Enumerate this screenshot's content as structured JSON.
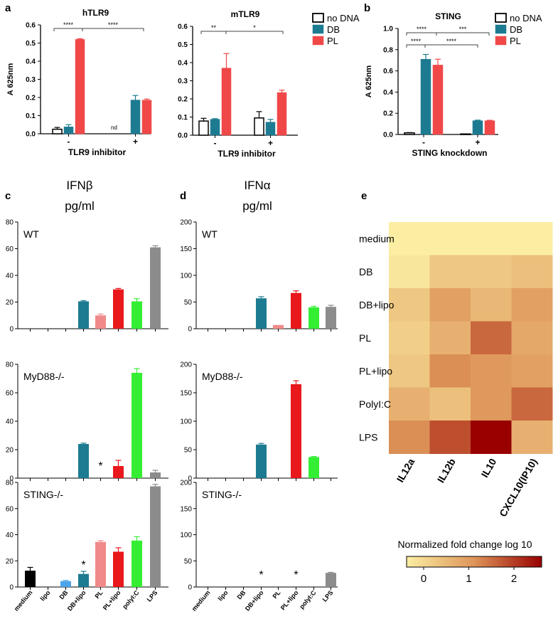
{
  "colors": {
    "none": "#ffffff",
    "db": "#1d7b91",
    "pl": "#f04848",
    "medium": "#000000",
    "lipo": "#4da3e8",
    "dbLipo": "#1d7b91",
    "plLight": "#f08a8a",
    "plLipo": "#e8181c",
    "polyIC": "#33ee33",
    "lps": "#8c8c8c",
    "heatLow": "#fbeea3",
    "heatMid": "#de9559",
    "heatHigh": "#990000"
  },
  "letters": {
    "a": "a",
    "b": "b",
    "c": "c",
    "d": "d",
    "e": "e"
  },
  "legend_labels": [
    "no DNA",
    "DB",
    "PL"
  ],
  "chart_data": [
    {
      "id": "hTLR9",
      "type": "bar",
      "title": "hTLR9",
      "ylabel": "A 625nm",
      "xlabel": "TLR9 inhibitor",
      "ylim": [
        0,
        0.6
      ],
      "yticks": [
        "0.0",
        "0.1",
        "0.2",
        "0.3",
        "0.4",
        "0.5",
        "0.6"
      ],
      "categories": [
        "-",
        "+"
      ],
      "series": [
        {
          "name": "no DNA",
          "values": [
            0.025,
            null
          ],
          "errors": [
            0.01,
            0
          ]
        },
        {
          "name": "DB",
          "values": [
            0.038,
            0.186
          ],
          "errors": [
            0.012,
            0.025
          ]
        },
        {
          "name": "PL",
          "values": [
            0.52,
            0.185
          ],
          "errors": [
            0.004,
            0.006
          ]
        }
      ],
      "nd": "nd",
      "significance": [
        "****",
        "****"
      ]
    },
    {
      "id": "mTLR9",
      "type": "bar",
      "title": "mTLR9",
      "ylabel": "",
      "xlabel": "TLR9 inhibitor",
      "ylim": [
        0,
        0.6
      ],
      "yticks": [
        "0.0",
        "0.1",
        "0.2",
        "0.3",
        "0.4",
        "0.5",
        "0.6"
      ],
      "categories": [
        "-",
        "+"
      ],
      "series": [
        {
          "name": "no DNA",
          "values": [
            0.078,
            0.095
          ],
          "errors": [
            0.015,
            0.035
          ]
        },
        {
          "name": "DB",
          "values": [
            0.088,
            0.072
          ],
          "errors": [
            0.003,
            0.015
          ]
        },
        {
          "name": "PL",
          "values": [
            0.37,
            0.235
          ],
          "errors": [
            0.08,
            0.013
          ]
        }
      ],
      "significance": [
        "**",
        "*"
      ]
    },
    {
      "id": "STING",
      "type": "bar",
      "title": "STING",
      "ylabel": "A 625nm",
      "xlabel": "STING knockdown",
      "ylim": [
        0,
        1.0
      ],
      "yticks": [
        "0.0",
        "0.2",
        "0.4",
        "0.6",
        "0.8",
        "1.0"
      ],
      "categories": [
        "-",
        "+"
      ],
      "series": [
        {
          "name": "no DNA",
          "values": [
            0.015,
            0.005
          ],
          "errors": [
            0.003,
            0
          ]
        },
        {
          "name": "DB",
          "values": [
            0.71,
            0.13
          ],
          "errors": [
            0.045,
            0.005
          ]
        },
        {
          "name": "PL",
          "values": [
            0.655,
            0.13
          ],
          "errors": [
            0.055,
            0.004
          ]
        }
      ],
      "significance": [
        "****",
        "***",
        "****",
        "****"
      ]
    },
    {
      "id": "IFNb",
      "type": "bar",
      "title": "IFNβ",
      "subtitle": "pg/ml",
      "categories": [
        "medium",
        "lipo",
        "DB",
        "DB+lipo",
        "PL",
        "PL+lipo",
        "polyI:C",
        "LPS"
      ],
      "panels": [
        {
          "label": "WT",
          "ylim": [
            0,
            80
          ],
          "yticks": [
            "0",
            "20",
            "40",
            "60",
            "80"
          ],
          "values": [
            0,
            0,
            0,
            20.5,
            10,
            29.5,
            20.5,
            61
          ],
          "errors": [
            0,
            0,
            0,
            0.5,
            1,
            0.7,
            2,
            1.2
          ],
          "colors": [
            "medium",
            "lipo",
            "db",
            "dbLipo",
            "plLight",
            "plLipo",
            "polyIC",
            "lps"
          ],
          "stars": []
        },
        {
          "label": "MyD88-/-",
          "ylim": [
            0,
            80
          ],
          "yticks": [
            "0",
            "20",
            "40",
            "60",
            "80"
          ],
          "values": [
            0,
            0,
            0,
            24,
            0,
            8.5,
            74,
            4
          ],
          "errors": [
            0,
            0,
            0,
            0.6,
            0,
            4,
            3,
            1.5
          ],
          "colors": [
            "medium",
            "lipo",
            "db",
            "dbLipo",
            "plLight",
            "plLipo",
            "polyIC",
            "lps"
          ],
          "stars": [
            4
          ]
        },
        {
          "label": "STING-/-",
          "ylim": [
            0,
            80
          ],
          "yticks": [
            "0",
            "20",
            "40",
            "60",
            "80"
          ],
          "values": [
            12.5,
            0,
            4.5,
            10,
            34.5,
            27,
            35.5,
            77
          ],
          "errors": [
            2.5,
            0,
            0.5,
            2,
            1,
            3,
            3,
            1.5
          ],
          "colors": [
            "medium",
            "lipo",
            "lipo",
            "dbLipo",
            "plLight",
            "plLipo",
            "polyIC",
            "lps"
          ],
          "stars": [
            3
          ]
        }
      ]
    },
    {
      "id": "IFNa",
      "type": "bar",
      "title": "IFNα",
      "subtitle": "pg/ml",
      "categories": [
        "medium",
        "lipo",
        "DB",
        "DB+lipo",
        "PL",
        "PL+lipo",
        "polyI:C",
        "LPS"
      ],
      "panels": [
        {
          "label": "WT",
          "ylim": [
            0,
            200
          ],
          "yticks": [
            "0",
            "50",
            "100",
            "150",
            "200"
          ],
          "values": [
            0,
            0,
            0,
            57,
            7,
            67,
            40,
            41
          ],
          "errors": [
            0,
            0,
            0,
            3,
            0,
            4,
            2,
            3
          ],
          "colors": [
            "medium",
            "lipo",
            "db",
            "dbLipo",
            "plLight",
            "plLipo",
            "polyIC",
            "lps"
          ],
          "stars": []
        },
        {
          "label": "MyD88-/-",
          "ylim": [
            0,
            200
          ],
          "yticks": [
            "0",
            "50",
            "100",
            "150",
            "200"
          ],
          "values": [
            0,
            0,
            0,
            59,
            0,
            165,
            37,
            0
          ],
          "errors": [
            0,
            0,
            0,
            2,
            0,
            6,
            1,
            0
          ],
          "colors": [
            "medium",
            "lipo",
            "db",
            "dbLipo",
            "plLight",
            "plLipo",
            "polyIC",
            "lps"
          ],
          "stars": []
        },
        {
          "label": "STING-/-",
          "ylim": [
            0,
            200
          ],
          "yticks": [
            "0",
            "50",
            "100",
            "150",
            "200"
          ],
          "values": [
            0,
            0,
            0,
            0,
            0,
            0,
            0,
            27
          ],
          "errors": [
            0,
            0,
            0,
            0,
            0,
            0,
            0,
            1
          ],
          "colors": [
            "medium",
            "lipo",
            "db",
            "dbLipo",
            "plLight",
            "plLipo",
            "polyIC",
            "lps"
          ],
          "stars": [
            3,
            5
          ]
        }
      ]
    },
    {
      "id": "heatmap",
      "type": "heatmap",
      "rows": [
        "medium",
        "DB",
        "DB+lipo",
        "PL",
        "PL+lipo",
        "PolyI:C",
        "LPS"
      ],
      "columns": [
        "IL12a",
        "IL12b",
        "IL10",
        "CXCL10(IP10)"
      ],
      "values": [
        [
          0.0,
          0.0,
          0.0,
          0.0
        ],
        [
          0.1,
          0.5,
          0.5,
          0.6
        ],
        [
          0.5,
          1.0,
          0.7,
          1.0
        ],
        [
          0.4,
          0.8,
          1.5,
          0.9
        ],
        [
          0.5,
          1.2,
          1.1,
          1.0
        ],
        [
          0.8,
          0.6,
          1.1,
          1.5
        ],
        [
          1.2,
          1.7,
          2.3,
          0.8
        ]
      ],
      "colorbar": {
        "label": "Normalized fold change log 10",
        "ticks": [
          "0",
          "1",
          "2"
        ],
        "range": [
          0,
          2.3
        ]
      }
    }
  ]
}
